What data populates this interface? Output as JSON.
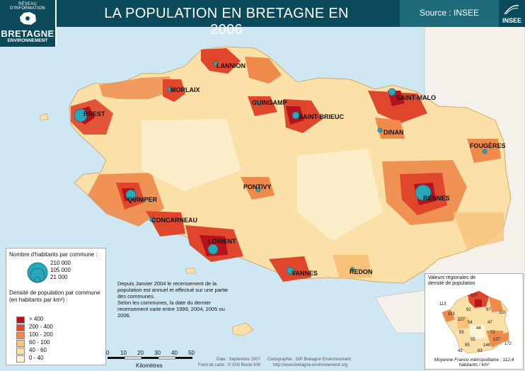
{
  "header": {
    "title": "LA POPULATION EN BRETAGNE EN 2006",
    "source": "Source : INSEE",
    "insee_logo_text": "INSEE"
  },
  "logo": {
    "top": "RÉSEAU D'INFORMATION",
    "name": "BRETAGNE",
    "sub": "ENVIRONNEMENT"
  },
  "colors": {
    "sea": "#cfe7f3",
    "header": "#0b4a5a",
    "source_box": "#1f6b7c",
    "circle": "#2aa7b8",
    "outside_land": "#f3f1ea"
  },
  "cities": [
    {
      "name": "LANNION"
    },
    {
      "name": "MORLAIX"
    },
    {
      "name": "BREST"
    },
    {
      "name": "GUINGAMP"
    },
    {
      "name": "SAINT-MALO"
    },
    {
      "name": "SAINT-BRIEUC"
    },
    {
      "name": "DINAN"
    },
    {
      "name": "FOUGÈRES"
    },
    {
      "name": "PONTIVY"
    },
    {
      "name": "RENNES"
    },
    {
      "name": "QUIMPER"
    },
    {
      "name": "CONCARNEAU"
    },
    {
      "name": "LORIENT"
    },
    {
      "name": "VANNES"
    },
    {
      "name": "REDON"
    }
  ],
  "legend": {
    "population_title": "Nombre d'habitants par commune :",
    "population_values": [
      "210 000",
      "105 000",
      "21 000"
    ],
    "density_title": "Densité de population par commune (en habitants par km²) :",
    "classes": [
      {
        "label": "> 400",
        "color": "#b5121b"
      },
      {
        "label": "200 - 400",
        "color": "#e0462b"
      },
      {
        "label": "100 - 200",
        "color": "#f08a4b"
      },
      {
        "label": "60 - 100",
        "color": "#f8c27b"
      },
      {
        "label": "40 - 60",
        "color": "#fbe0a8"
      },
      {
        "label": "0 - 40",
        "color": "#fdf4d8"
      }
    ]
  },
  "note": [
    "Depuis Janvier 2004 le recensement de la population est annuel et effectué sur une partie des communes.",
    "Selon les communes, la date du dernier recensement varie entre 1999, 2004, 2005 ou 2006."
  ],
  "inset": {
    "title": "Valeurs régionales de densité de population",
    "caption": "Moyenne France métropolitaine : 112,4 habitants / km²",
    "values": [
      "113",
      "107",
      "92",
      "97",
      "110",
      "54",
      "44",
      "47",
      "55",
      "72",
      "113",
      "107",
      "55",
      "95",
      "137",
      "172",
      "148",
      "63",
      "42"
    ]
  },
  "scale": {
    "ticks": [
      "0",
      "10",
      "20",
      "30",
      "40",
      "50"
    ],
    "unit": "Kilomètres"
  },
  "credits": {
    "date": "Date : Septembre 2007",
    "basemap": "Fond de carte : © IGN Route 500",
    "cartography": "Cartographie : GIP Bretagne Environnement",
    "website": "http://www.bretagne-environnement.org"
  }
}
